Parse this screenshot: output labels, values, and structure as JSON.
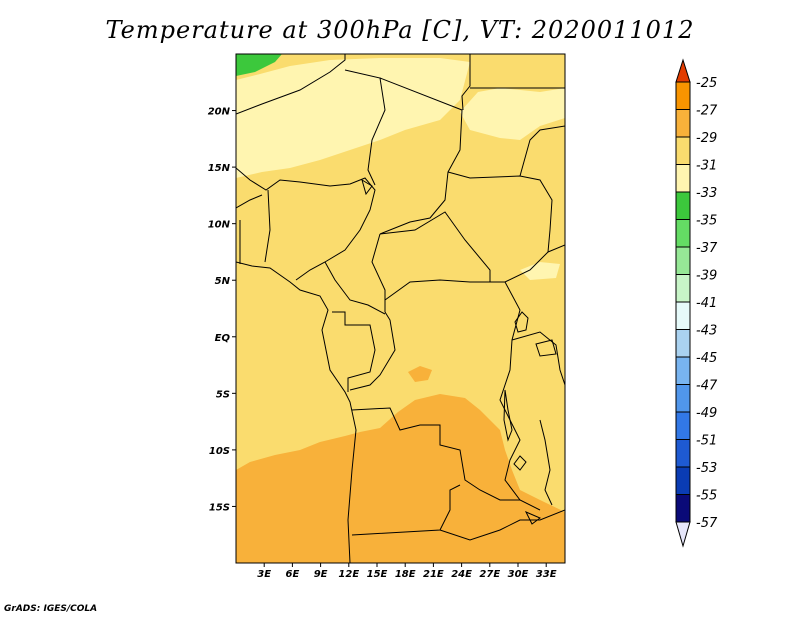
{
  "title": "Temperature at 300hPa [C], VT: 2020011012",
  "credit": "GrADS: IGES/COLA",
  "map": {
    "lon_range": [
      0,
      35
    ],
    "lat_range": [
      -20,
      25
    ],
    "lat_ticks": [
      {
        "value": 20,
        "label": "20N"
      },
      {
        "value": 15,
        "label": "15N"
      },
      {
        "value": 10,
        "label": "10N"
      },
      {
        "value": 5,
        "label": "5N"
      },
      {
        "value": 0,
        "label": "EQ"
      },
      {
        "value": -5,
        "label": "5S"
      },
      {
        "value": -10,
        "label": "10S"
      },
      {
        "value": -15,
        "label": "15S"
      }
    ],
    "lon_ticks": [
      {
        "value": 3,
        "label": "3E"
      },
      {
        "value": 6,
        "label": "6E"
      },
      {
        "value": 9,
        "label": "9E"
      },
      {
        "value": 12,
        "label": "12E"
      },
      {
        "value": 15,
        "label": "15E"
      },
      {
        "value": 18,
        "label": "18E"
      },
      {
        "value": 21,
        "label": "21E"
      },
      {
        "value": 24,
        "label": "24E"
      },
      {
        "value": 27,
        "label": "27E"
      },
      {
        "value": 30,
        "label": "30E"
      },
      {
        "value": 33,
        "label": "33E"
      }
    ]
  },
  "colorbar": {
    "levels": [
      {
        "label": "-25",
        "color": "#f06400"
      },
      {
        "label": "-27",
        "color": "#f89400"
      },
      {
        "label": "-29",
        "color": "#f8b13a"
      },
      {
        "label": "-31",
        "color": "#fadc6e"
      },
      {
        "label": "-33",
        "color": "#fff5b0"
      },
      {
        "label": "-35",
        "color": "#3cc83c"
      },
      {
        "label": "-37",
        "color": "#64dc64"
      },
      {
        "label": "-39",
        "color": "#96e896"
      },
      {
        "label": "-41",
        "color": "#c8f5c8"
      },
      {
        "label": "-43",
        "color": "#e6fafa"
      },
      {
        "label": "-45",
        "color": "#aad2f0"
      },
      {
        "label": "-47",
        "color": "#78b4f0"
      },
      {
        "label": "-49",
        "color": "#5096eb"
      },
      {
        "label": "-51",
        "color": "#3278e6"
      },
      {
        "label": "-53",
        "color": "#1e5ad2"
      },
      {
        "label": "-55",
        "color": "#0a3cb4"
      },
      {
        "label": "-57",
        "color": "#0a0a78"
      }
    ],
    "top_arrow_color": "#e23c00",
    "bottom_arrow_color": "#e6e6fa"
  }
}
